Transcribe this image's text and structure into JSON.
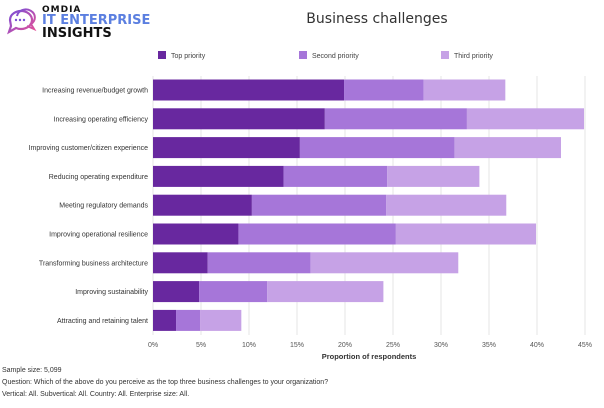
{
  "logo": {
    "brand": "OMDIA",
    "line1": "IT ENTERPRISE",
    "line2": "INSIGHTS"
  },
  "chart_data": {
    "type": "bar",
    "orientation": "horizontal",
    "stacked": true,
    "title": "Business challenges",
    "xlabel": "Proportion of respondents",
    "ylabel": "",
    "xlim": [
      0,
      45
    ],
    "x_ticks": [
      "0%",
      "5%",
      "10%",
      "15%",
      "20%",
      "25%",
      "30%",
      "35%",
      "40%",
      "45%"
    ],
    "grid": true,
    "legend_position": "top",
    "categories": [
      "Increasing revenue/budget growth",
      "Increasing operating efficiency",
      "Improving customer/citizen experience",
      "Reducing operating expenditure",
      "Meeting regulatory demands",
      "Improving operational resilience",
      "Transforming business architecture",
      "Improving sustainability",
      "Attracting and retaining talent"
    ],
    "series": [
      {
        "name": "Top priority",
        "color": "#68289f",
        "values": [
          19.9,
          17.9,
          15.3,
          13.6,
          10.3,
          8.9,
          5.7,
          4.8,
          2.4
        ]
      },
      {
        "name": "Second priority",
        "color": "#a676d9",
        "values": [
          8.3,
          14.8,
          16.1,
          10.8,
          14.0,
          16.4,
          10.7,
          7.1,
          2.5
        ]
      },
      {
        "name": "Third priority",
        "color": "#c6a2e6",
        "values": [
          8.5,
          12.2,
          11.1,
          9.6,
          12.5,
          14.6,
          15.4,
          12.1,
          4.3
        ]
      }
    ]
  },
  "footer": {
    "sample": "Sample size: 5,099",
    "question": "Question: Which of the above do you perceive as the top three business challenges to your organization?",
    "filters": "Vertical: All. Subvertical: All. Country: All. Enterprise size: All."
  }
}
